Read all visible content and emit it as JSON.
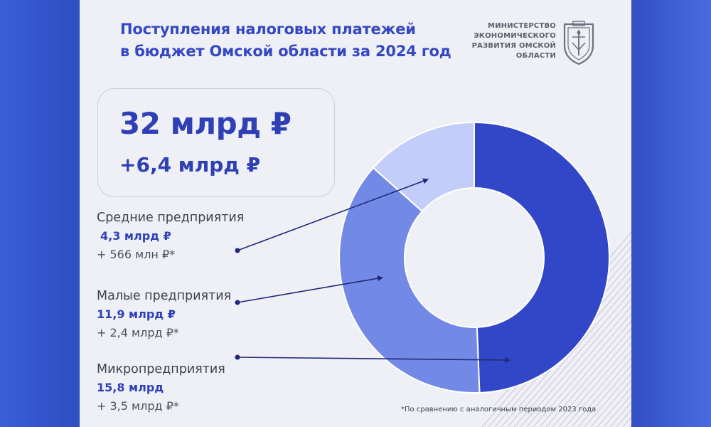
{
  "header": {
    "title_line1": "Поступления налоговых платежей",
    "title_line2": "в бюджет Омской области за 2024 год",
    "ministry_lines": [
      "МИНИСТЕРСТВО",
      "ЭКОНОМИЧЕСКОГО",
      "РАЗВИТИЯ ОМСКОЙ",
      "ОБЛАСТИ"
    ]
  },
  "summary": {
    "total": "32 млрд ₽",
    "growth": "+6,4 млрд ₽"
  },
  "categories": {
    "medium": {
      "name": "Средние предприятия",
      "value": "4,3  млрд ₽",
      "delta": "+ 566 млн ₽*"
    },
    "small": {
      "name": "Малые предприятия",
      "value": "11,9 млрд ₽",
      "delta": "+ 2,4 млрд ₽*"
    },
    "micro": {
      "name": "Микропредприятия",
      "value": "15,8 млрд",
      "delta": "+ 3,5 млрд ₽*"
    }
  },
  "footnote": "*По сравнению с аналогичным периодом 2023 года",
  "chart_data": {
    "type": "pie",
    "series": [
      {
        "name": "Микропредприятия",
        "value": 15.8,
        "color": "#3147c8"
      },
      {
        "name": "Малые предприятия",
        "value": 11.9,
        "color": "#7389e6"
      },
      {
        "name": "Средние предприятия",
        "value": 4.3,
        "color": "#c3cdfa"
      }
    ]
  },
  "colors": {
    "accent": "#3548c2",
    "arrow": "#1e2a78",
    "background": "#3352c8",
    "card": "#eef0f5"
  }
}
